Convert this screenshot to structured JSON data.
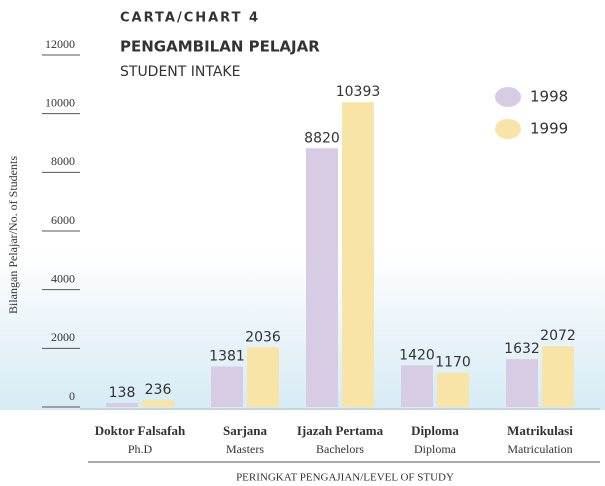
{
  "chart_data": {
    "type": "bar",
    "chart_label": "CARTA/CHART 4",
    "title": "PENGAMBILAN PELAJAR",
    "subtitle": "STUDENT INTAKE",
    "y_label": "Bilangan Pelajar/No. of Students",
    "x_label": "PERINGKAT PENGAJIAN/LEVEL OF STUDY",
    "categories": [
      "Doktor Falsafah",
      "Sarjana",
      "Ijazah Pertama",
      "Diploma",
      "Matrikulasi"
    ],
    "category_subtitles": [
      "Ph.D",
      "Masters",
      "Bachelors",
      "Diploma",
      "Matriculation"
    ],
    "series": [
      {
        "name": "1998",
        "color": "#d8cbe4",
        "values": [
          138,
          1381,
          8820,
          1420,
          1632
        ]
      },
      {
        "name": "1999",
        "color": "#f7e4a6",
        "values": [
          236,
          2036,
          10393,
          1170,
          2072
        ]
      }
    ],
    "ylim": [
      0,
      12000
    ],
    "yticks": [
      0,
      2000,
      4000,
      6000,
      8000,
      10000,
      12000
    ],
    "legend": "top-right"
  }
}
